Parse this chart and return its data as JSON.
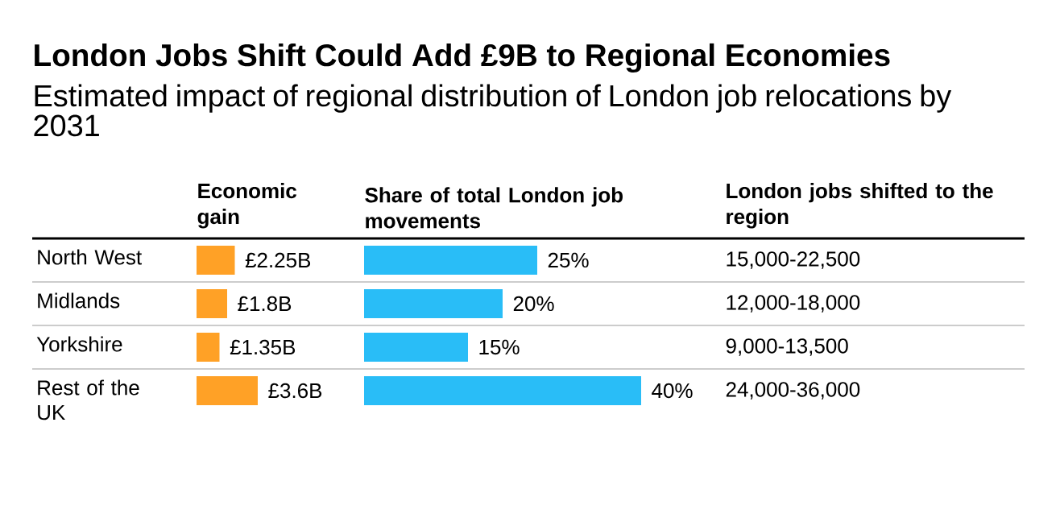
{
  "chart_data": [
    {
      "type": "bar",
      "orientation": "horizontal",
      "title": "London Jobs Shift Could Add £9B to Regional Economies",
      "subtitle": "Estimated impact of regional distribution of London job relocations by 2031",
      "xlabel": "Economic gain",
      "categories": [
        "North West",
        "Midlands",
        "Yorkshire",
        "Rest of the UK"
      ],
      "values": [
        2.25,
        1.8,
        1.35,
        3.6
      ],
      "value_labels": [
        "£2.25B",
        "£1.8B",
        "£1.35B",
        "£3.6B"
      ],
      "color": "#ffa126",
      "tick_labels": "y"
    },
    {
      "type": "bar",
      "orientation": "horizontal",
      "xlabel": "Share of total London job movements",
      "categories": [
        null,
        null,
        null,
        null
      ],
      "values": [
        25,
        20,
        15,
        40
      ],
      "value_labels": [
        "25%",
        "20%",
        "15%",
        "40%"
      ],
      "color": "#29bdf7",
      "tick_labels": false
    },
    {
      "type": "other",
      "xlabel": "London jobs shifted to the region",
      "annotations": [
        "15,000-22,500",
        "12,000-18,000",
        "9,000-13,500",
        "24,000-36,000"
      ]
    }
  ]
}
